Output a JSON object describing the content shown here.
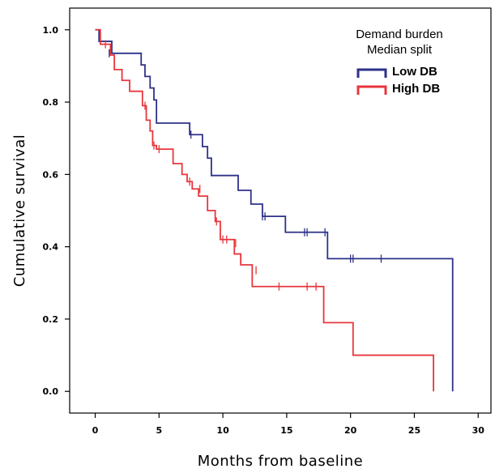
{
  "chart_data": {
    "type": "line",
    "title": "",
    "xlabel": "Months from baseline",
    "ylabel": "Cumulative survival",
    "xlim": [
      -2,
      31
    ],
    "ylim": [
      -0.06,
      1.06
    ],
    "xticks": [
      0,
      5,
      10,
      15,
      20,
      25,
      30
    ],
    "xtick_labels": [
      "0",
      "5",
      "10",
      "15",
      "20",
      "25",
      "30"
    ],
    "yticks": [
      0.0,
      0.2,
      0.4,
      0.6,
      0.8,
      1.0
    ],
    "ytick_labels": [
      "0.0",
      "0.2",
      "0.4",
      "0.6",
      "0.8",
      "1.0"
    ],
    "grid": false,
    "step": true,
    "legend": {
      "placement": "top-right",
      "title_lines": [
        "Demand burden",
        "Median split"
      ]
    },
    "series": [
      {
        "name": "Low DB",
        "color": "#2e3188",
        "x": [
          0,
          0.3,
          1.3,
          3.6,
          3.9,
          4.3,
          4.6,
          4.8,
          7.4,
          8.4,
          8.8,
          9.1,
          11.2,
          12.2,
          13.1,
          14.9,
          18.2,
          28.0
        ],
        "y": [
          1.0,
          0.968,
          0.935,
          0.903,
          0.871,
          0.839,
          0.806,
          0.742,
          0.71,
          0.677,
          0.645,
          0.597,
          0.556,
          0.518,
          0.484,
          0.44,
          0.367,
          0.0
        ],
        "censor_x": [
          1.1,
          7.5,
          13.1,
          13.3,
          16.4,
          16.6,
          18.0,
          20.0,
          20.2,
          22.4
        ],
        "censor_y": [
          0.935,
          0.71,
          0.484,
          0.484,
          0.44,
          0.44,
          0.44,
          0.367,
          0.367,
          0.367
        ]
      },
      {
        "name": "High DB",
        "color": "#e8363c",
        "x": [
          0,
          0.4,
          1.2,
          1.5,
          2.1,
          2.7,
          3.7,
          4.0,
          4.3,
          4.5,
          4.8,
          6.1,
          6.8,
          7.2,
          7.6,
          8.1,
          8.8,
          9.4,
          9.8,
          10.9,
          11.4,
          12.3,
          17.9,
          20.2,
          26.5
        ],
        "y": [
          1.0,
          0.96,
          0.93,
          0.89,
          0.86,
          0.83,
          0.79,
          0.75,
          0.72,
          0.68,
          0.67,
          0.63,
          0.6,
          0.58,
          0.56,
          0.54,
          0.5,
          0.47,
          0.42,
          0.38,
          0.35,
          0.29,
          0.19,
          0.1,
          0.0
        ],
        "censor_x": [
          0.8,
          3.9,
          4.6,
          5.0,
          7.4,
          8.2,
          9.5,
          10.0,
          10.3,
          11.0,
          12.6,
          14.4,
          16.6,
          17.3
        ],
        "censor_y": [
          0.96,
          0.79,
          0.68,
          0.67,
          0.58,
          0.56,
          0.47,
          0.42,
          0.42,
          0.41,
          0.335,
          0.29,
          0.29,
          0.29
        ]
      }
    ]
  }
}
